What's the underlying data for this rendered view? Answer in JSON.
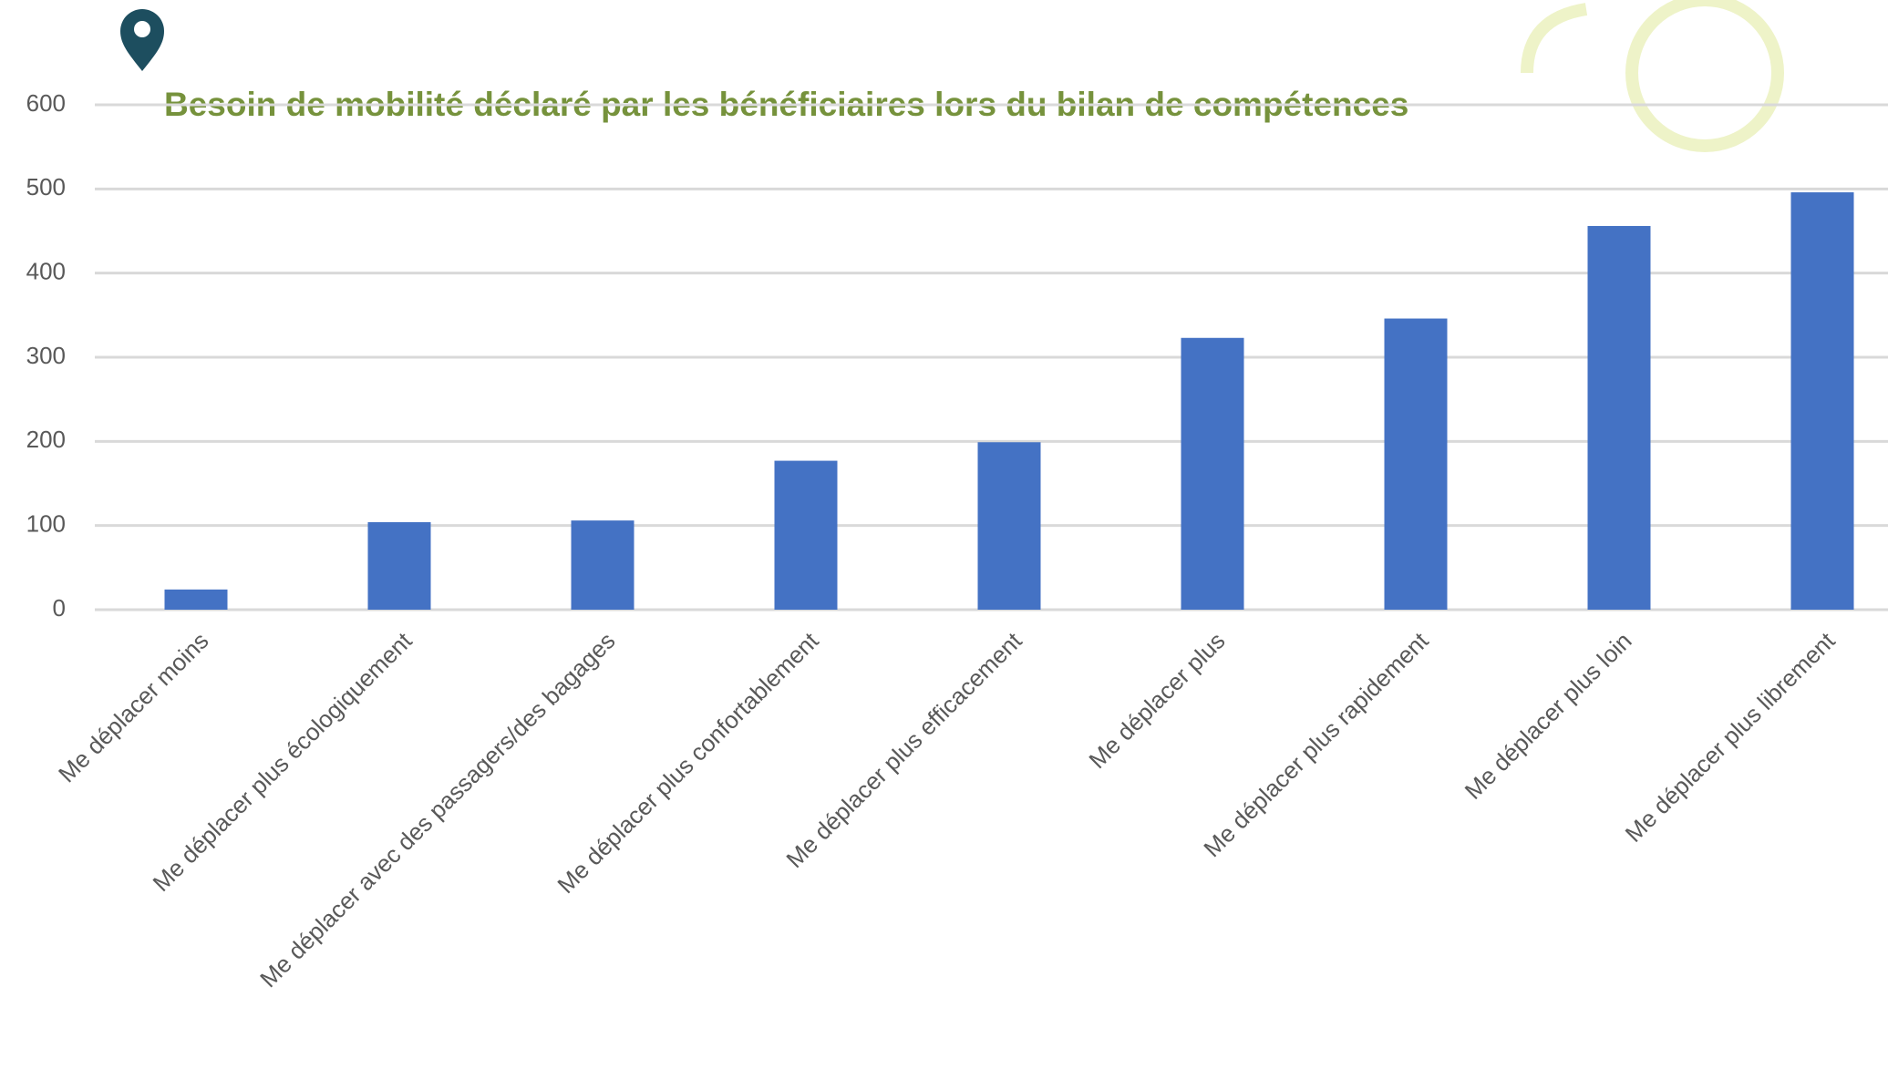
{
  "chart_data": {
    "type": "bar",
    "title": "Besoin de mobilité déclaré par les bénéficiaires lors du bilan de compétences",
    "categories": [
      "Me déplacer moins",
      "Me déplacer plus écologiquement",
      "Me déplacer avec des passagers/des bagages",
      "Me déplacer plus confortablement",
      "Me déplacer plus efficacement",
      "Me déplacer plus",
      "Me déplacer plus rapidement",
      "Me déplacer plus loin",
      "Me déplacer plus librement"
    ],
    "values": [
      24,
      104,
      106,
      177,
      199,
      323,
      346,
      456,
      496
    ],
    "color": "#4472c4",
    "ylim": [
      0,
      600
    ],
    "yticks": [
      0,
      100,
      200,
      300,
      400,
      500,
      600
    ],
    "grid": true
  }
}
